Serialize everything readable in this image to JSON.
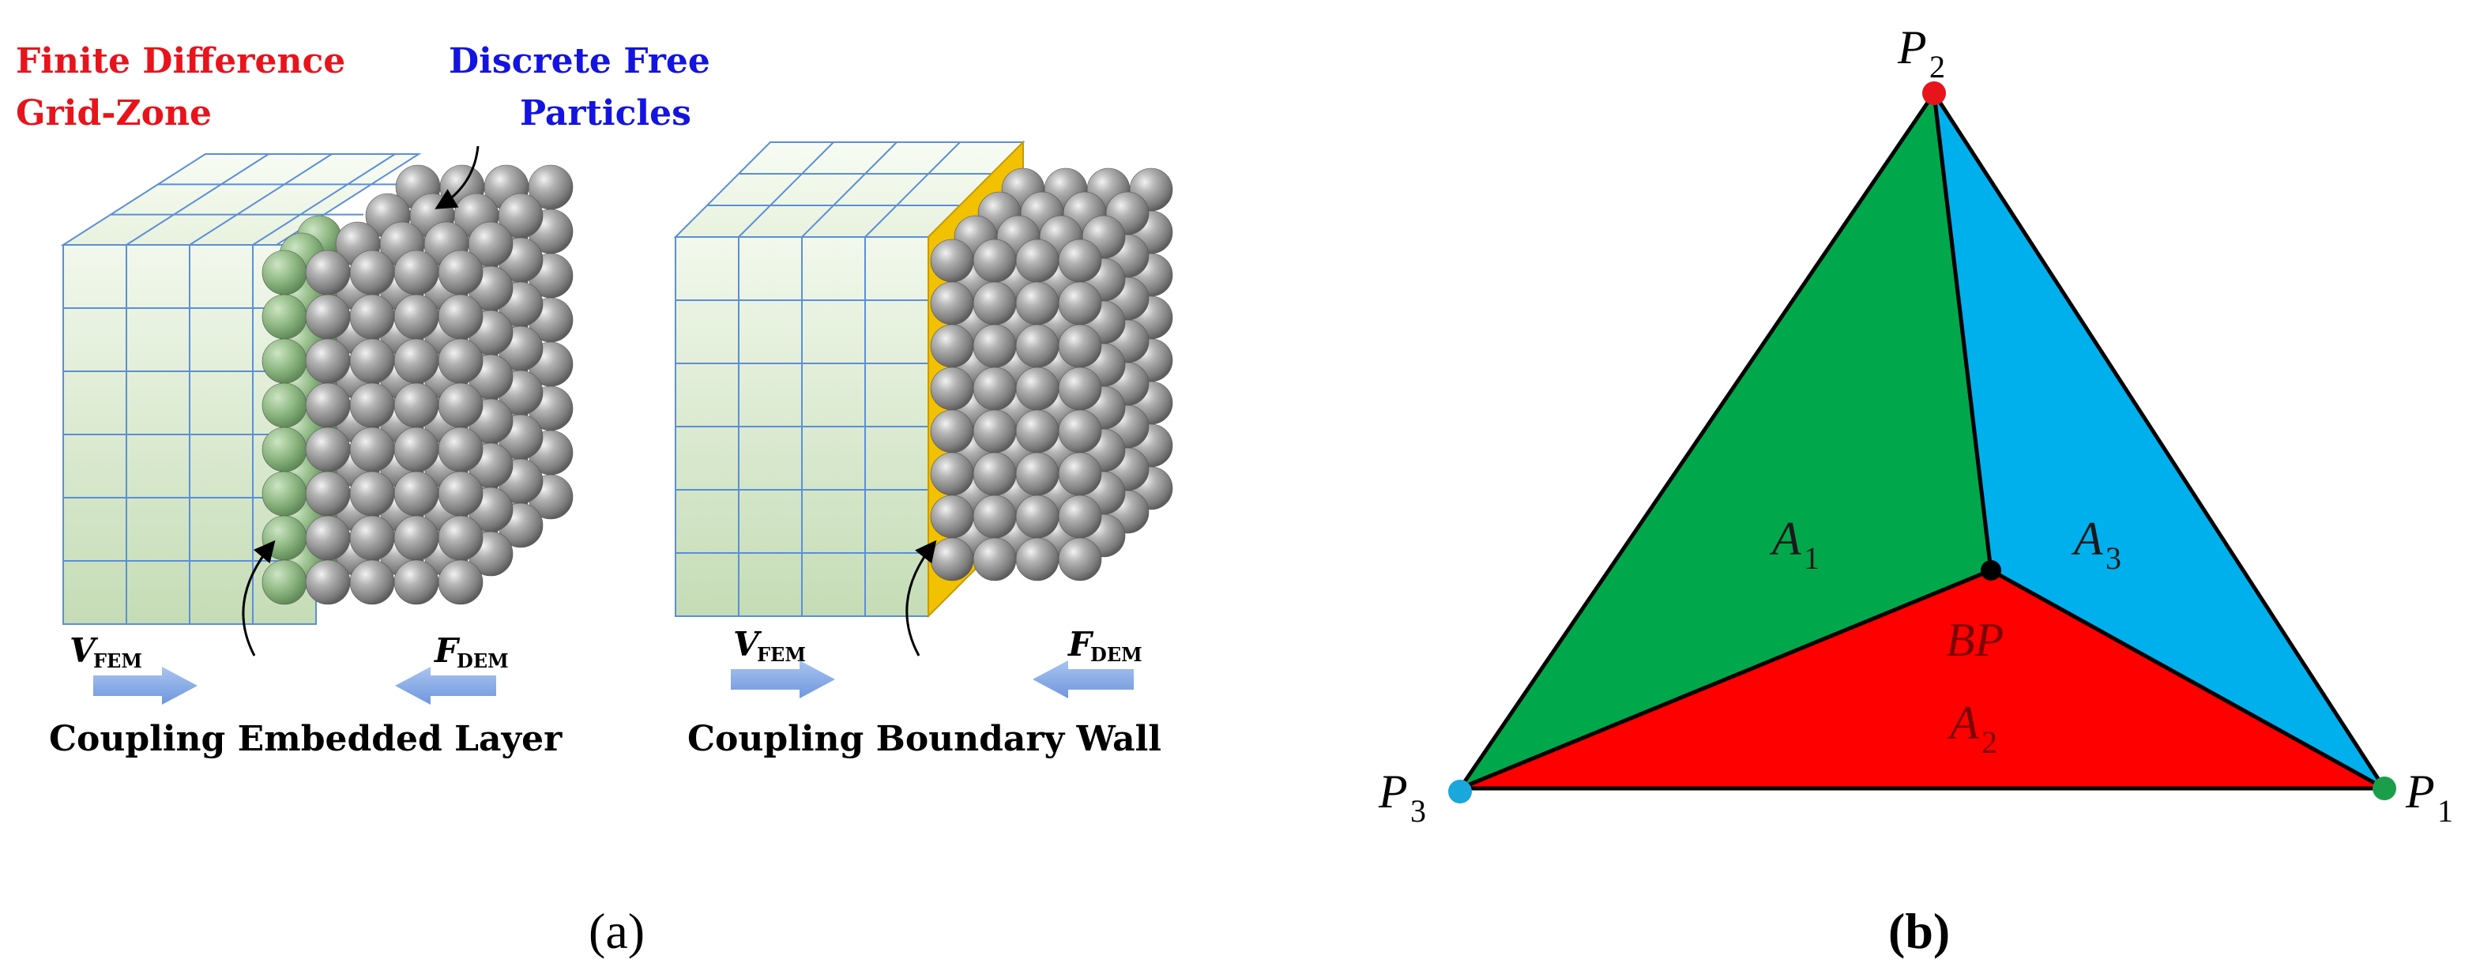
{
  "panel_a": {
    "label_fdm_line1": "Finite Difference",
    "label_fdm_line2": "Grid-Zone",
    "label_dem_line1": "Discrete Free",
    "label_dem_line2": "Particles",
    "v_letter": "V",
    "v_sub": "FEM",
    "f_letter": "F",
    "f_sub": "DEM",
    "caption_left": "Coupling Embedded Layer",
    "caption_right": "Coupling Boundary Wall",
    "panel_label": "(a)",
    "colors": {
      "fdm_label": "#e8141c",
      "dem_label": "#1414e0",
      "grid_line": "#5b8fd6",
      "arrow": "#7ea4e6",
      "wall": "#f2c200",
      "sphere": "#9a9a9a"
    }
  },
  "panel_b": {
    "p1_letter": "P",
    "p1_sub": "1",
    "p2_letter": "P",
    "p2_sub": "2",
    "p3_letter": "P",
    "p3_sub": "3",
    "a1_letter": "A",
    "a1_sub": "1",
    "a2_letter": "A",
    "a2_sub": "2",
    "a3_letter": "A",
    "a3_sub": "3",
    "bp": "BP",
    "panel_label": "(b)",
    "colors": {
      "a1_fill": "#00a84b",
      "a2_fill": "#ff0000",
      "a3_fill": "#00b0ec",
      "p1_dot": "#1a9e4a",
      "p2_dot": "#e8141c",
      "p3_dot": "#1aa7dc",
      "bp_dot": "#000000"
    }
  }
}
